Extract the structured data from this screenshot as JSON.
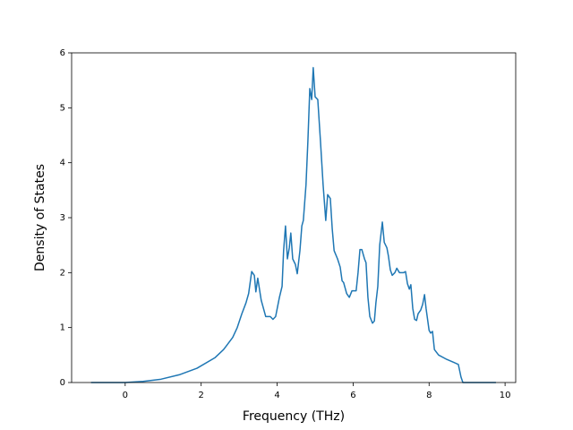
{
  "chart_data": {
    "type": "line",
    "xlabel": "Frequency (THz)",
    "ylabel": "Density of States",
    "color": "#1f77b4",
    "x": [
      -0.9,
      0,
      0.47,
      0.94,
      1.42,
      1.89,
      2.36,
      2.59,
      2.83,
      2.95,
      3.07,
      3.18,
      3.25,
      3.33,
      3.4,
      3.44,
      3.49,
      3.58,
      3.7,
      3.82,
      3.89,
      3.96,
      4.06,
      4.13,
      4.17,
      4.22,
      4.27,
      4.32,
      4.36,
      4.41,
      4.48,
      4.53,
      4.6,
      4.65,
      4.69,
      4.76,
      4.81,
      4.86,
      4.91,
      4.95,
      5.0,
      5.07,
      5.14,
      5.21,
      5.28,
      5.33,
      5.4,
      5.45,
      5.5,
      5.59,
      5.66,
      5.71,
      5.75,
      5.83,
      5.9,
      5.97,
      6.08,
      6.13,
      6.18,
      6.23,
      6.3,
      6.34,
      6.39,
      6.44,
      6.51,
      6.56,
      6.6,
      6.65,
      6.7,
      6.77,
      6.82,
      6.89,
      6.93,
      6.98,
      7.03,
      7.1,
      7.15,
      7.22,
      7.33,
      7.38,
      7.43,
      7.48,
      7.52,
      7.57,
      7.62,
      7.67,
      7.71,
      7.78,
      7.83,
      7.88,
      7.92,
      8.0,
      8.04,
      8.09,
      8.14,
      8.25,
      8.44,
      8.77,
      8.84,
      8.89,
      9.76
    ],
    "values": [
      0,
      0,
      0.02,
      0.06,
      0.14,
      0.26,
      0.45,
      0.6,
      0.82,
      1.0,
      1.25,
      1.45,
      1.62,
      2.02,
      1.95,
      1.65,
      1.9,
      1.5,
      1.2,
      1.2,
      1.15,
      1.2,
      1.55,
      1.75,
      2.4,
      2.85,
      2.25,
      2.45,
      2.72,
      2.25,
      2.15,
      1.98,
      2.4,
      2.85,
      2.95,
      3.6,
      4.4,
      5.35,
      5.15,
      5.73,
      5.2,
      5.15,
      4.4,
      3.6,
      2.95,
      3.42,
      3.35,
      2.8,
      2.4,
      2.25,
      2.1,
      1.85,
      1.82,
      1.62,
      1.55,
      1.67,
      1.67,
      2.0,
      2.42,
      2.42,
      2.25,
      2.18,
      1.55,
      1.2,
      1.08,
      1.12,
      1.45,
      1.75,
      2.5,
      2.92,
      2.55,
      2.45,
      2.3,
      2.05,
      1.95,
      2.0,
      2.08,
      2.0,
      2.0,
      2.02,
      1.8,
      1.7,
      1.78,
      1.35,
      1.15,
      1.13,
      1.25,
      1.32,
      1.42,
      1.6,
      1.35,
      0.95,
      0.9,
      0.93,
      0.6,
      0.5,
      0.43,
      0.33,
      0.1,
      0,
      0
    ],
    "xlim": [
      -1.41,
      10.28
    ],
    "xticks": [
      0,
      2,
      4,
      6,
      8,
      10
    ],
    "ylim": [
      0,
      6
    ],
    "yticks": [
      0,
      1,
      2,
      3,
      4,
      5,
      6
    ]
  }
}
